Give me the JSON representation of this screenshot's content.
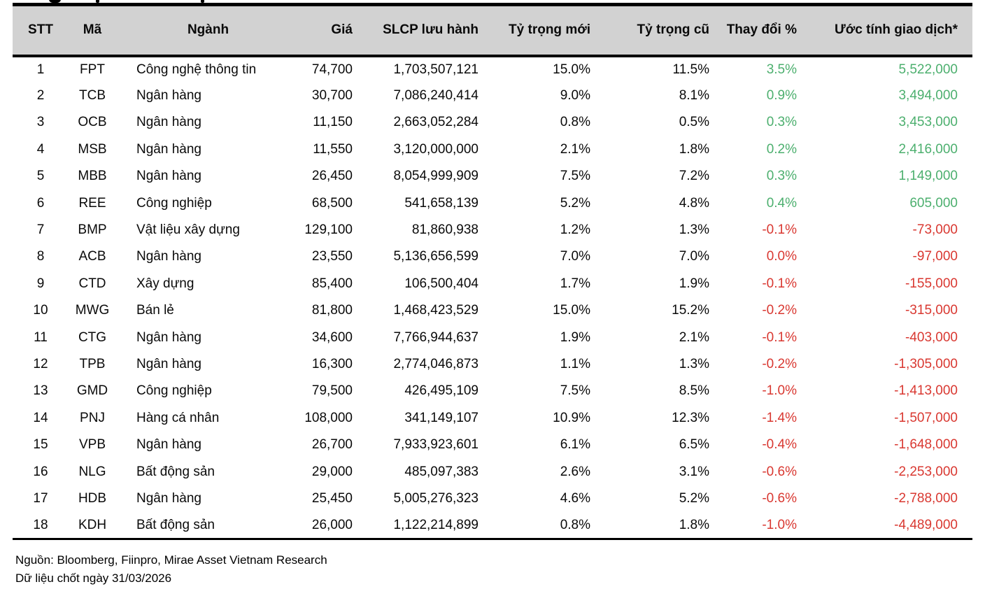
{
  "colors": {
    "positive": "#4CAF6E",
    "negative": "#D93831",
    "header_bg": "#D2D2D2",
    "rule": "#000000"
  },
  "table": {
    "columns": [
      {
        "key": "stt",
        "label": "STT",
        "align": "center"
      },
      {
        "key": "ma",
        "label": "Mã",
        "align": "center"
      },
      {
        "key": "nganh",
        "label": "Ngành",
        "align": "left"
      },
      {
        "key": "gia",
        "label": "Giá",
        "align": "right"
      },
      {
        "key": "slcp",
        "label": "SLCP lưu hành",
        "align": "right"
      },
      {
        "key": "ty_trong_moi",
        "label": "Tỷ trọng mới",
        "align": "right"
      },
      {
        "key": "ty_trong_cu",
        "label": "Tỷ trọng cũ",
        "align": "right"
      },
      {
        "key": "thay_doi",
        "label": "Thay đổi %",
        "align": "right"
      },
      {
        "key": "uoc_tinh",
        "label": "Ước tính giao dịch*",
        "align": "right"
      }
    ],
    "rows": [
      {
        "stt": "1",
        "ma": "FPT",
        "nganh": "Công nghệ thông tin",
        "gia": "74,700",
        "slcp": "1,703,507,121",
        "ty_trong_moi": "15.0%",
        "ty_trong_cu": "11.5%",
        "thay_doi": "3.5%",
        "uoc_tinh": "5,522,000",
        "trend": "up"
      },
      {
        "stt": "2",
        "ma": "TCB",
        "nganh": "Ngân hàng",
        "gia": "30,700",
        "slcp": "7,086,240,414",
        "ty_trong_moi": "9.0%",
        "ty_trong_cu": "8.1%",
        "thay_doi": "0.9%",
        "uoc_tinh": "3,494,000",
        "trend": "up"
      },
      {
        "stt": "3",
        "ma": "OCB",
        "nganh": "Ngân hàng",
        "gia": "11,150",
        "slcp": "2,663,052,284",
        "ty_trong_moi": "0.8%",
        "ty_trong_cu": "0.5%",
        "thay_doi": "0.3%",
        "uoc_tinh": "3,453,000",
        "trend": "up"
      },
      {
        "stt": "4",
        "ma": "MSB",
        "nganh": "Ngân hàng",
        "gia": "11,550",
        "slcp": "3,120,000,000",
        "ty_trong_moi": "2.1%",
        "ty_trong_cu": "1.8%",
        "thay_doi": "0.2%",
        "uoc_tinh": "2,416,000",
        "trend": "up"
      },
      {
        "stt": "5",
        "ma": "MBB",
        "nganh": "Ngân hàng",
        "gia": "26,450",
        "slcp": "8,054,999,909",
        "ty_trong_moi": "7.5%",
        "ty_trong_cu": "7.2%",
        "thay_doi": "0.3%",
        "uoc_tinh": "1,149,000",
        "trend": "up"
      },
      {
        "stt": "6",
        "ma": "REE",
        "nganh": "Công nghiệp",
        "gia": "68,500",
        "slcp": "541,658,139",
        "ty_trong_moi": "5.2%",
        "ty_trong_cu": "4.8%",
        "thay_doi": "0.4%",
        "uoc_tinh": "605,000",
        "trend": "up"
      },
      {
        "stt": "7",
        "ma": "BMP",
        "nganh": "Vật liệu xây dựng",
        "gia": "129,100",
        "slcp": "81,860,938",
        "ty_trong_moi": "1.2%",
        "ty_trong_cu": "1.3%",
        "thay_doi": "-0.1%",
        "uoc_tinh": "-73,000",
        "trend": "down"
      },
      {
        "stt": "8",
        "ma": "ACB",
        "nganh": "Ngân hàng",
        "gia": "23,550",
        "slcp": "5,136,656,599",
        "ty_trong_moi": "7.0%",
        "ty_trong_cu": "7.0%",
        "thay_doi": "0.0%",
        "uoc_tinh": "-97,000",
        "trend": "down"
      },
      {
        "stt": "9",
        "ma": "CTD",
        "nganh": "Xây dựng",
        "gia": "85,400",
        "slcp": "106,500,404",
        "ty_trong_moi": "1.7%",
        "ty_trong_cu": "1.9%",
        "thay_doi": "-0.1%",
        "uoc_tinh": "-155,000",
        "trend": "down"
      },
      {
        "stt": "10",
        "ma": "MWG",
        "nganh": "Bán lẻ",
        "gia": "81,800",
        "slcp": "1,468,423,529",
        "ty_trong_moi": "15.0%",
        "ty_trong_cu": "15.2%",
        "thay_doi": "-0.2%",
        "uoc_tinh": "-315,000",
        "trend": "down"
      },
      {
        "stt": "11",
        "ma": "CTG",
        "nganh": "Ngân hàng",
        "gia": "34,600",
        "slcp": "7,766,944,637",
        "ty_trong_moi": "1.9%",
        "ty_trong_cu": "2.1%",
        "thay_doi": "-0.1%",
        "uoc_tinh": "-403,000",
        "trend": "down"
      },
      {
        "stt": "12",
        "ma": "TPB",
        "nganh": "Ngân hàng",
        "gia": "16,300",
        "slcp": "2,774,046,873",
        "ty_trong_moi": "1.1%",
        "ty_trong_cu": "1.3%",
        "thay_doi": "-0.2%",
        "uoc_tinh": "-1,305,000",
        "trend": "down"
      },
      {
        "stt": "13",
        "ma": "GMD",
        "nganh": "Công nghiệp",
        "gia": "79,500",
        "slcp": "426,495,109",
        "ty_trong_moi": "7.5%",
        "ty_trong_cu": "8.5%",
        "thay_doi": "-1.0%",
        "uoc_tinh": "-1,413,000",
        "trend": "down"
      },
      {
        "stt": "14",
        "ma": "PNJ",
        "nganh": "Hàng cá nhân",
        "gia": "108,000",
        "slcp": "341,149,107",
        "ty_trong_moi": "10.9%",
        "ty_trong_cu": "12.3%",
        "thay_doi": "-1.4%",
        "uoc_tinh": "-1,507,000",
        "trend": "down"
      },
      {
        "stt": "15",
        "ma": "VPB",
        "nganh": "Ngân hàng",
        "gia": "26,700",
        "slcp": "7,933,923,601",
        "ty_trong_moi": "6.1%",
        "ty_trong_cu": "6.5%",
        "thay_doi": "-0.4%",
        "uoc_tinh": "-1,648,000",
        "trend": "down"
      },
      {
        "stt": "16",
        "ma": "NLG",
        "nganh": "Bất động sản",
        "gia": "29,000",
        "slcp": "485,097,383",
        "ty_trong_moi": "2.6%",
        "ty_trong_cu": "3.1%",
        "thay_doi": "-0.6%",
        "uoc_tinh": "-2,253,000",
        "trend": "down"
      },
      {
        "stt": "17",
        "ma": "HDB",
        "nganh": "Ngân hàng",
        "gia": "25,450",
        "slcp": "5,005,276,323",
        "ty_trong_moi": "4.6%",
        "ty_trong_cu": "5.2%",
        "thay_doi": "-0.6%",
        "uoc_tinh": "-2,788,000",
        "trend": "down"
      },
      {
        "stt": "18",
        "ma": "KDH",
        "nganh": "Bất động sản",
        "gia": "26,000",
        "slcp": "1,122,214,899",
        "ty_trong_moi": "0.8%",
        "ty_trong_cu": "1.8%",
        "thay_doi": "-1.0%",
        "uoc_tinh": "-4,489,000",
        "trend": "down"
      }
    ]
  },
  "footer": {
    "source": "Nguồn: Bloomberg, Fiinpro, Mirae Asset Vietnam Research",
    "note": "Dữ liệu chốt ngày 31/03/2026"
  }
}
